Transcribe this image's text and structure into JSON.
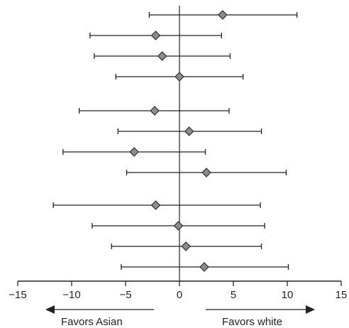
{
  "chart_data": {
    "type": "forest",
    "title": "",
    "xlabel": "",
    "ylabel": "",
    "xlim": [
      -15,
      15
    ],
    "x_ticks": [
      -15,
      -10,
      -5,
      0,
      5,
      10,
      15
    ],
    "x_tick_labels": [
      "−15",
      "−10",
      "−5",
      "0",
      "5",
      "10",
      "15"
    ],
    "reference_line": 0,
    "groups": [
      [
        {
          "estimate": 4.0,
          "lower": -2.8,
          "upper": 10.9
        },
        {
          "estimate": -2.2,
          "lower": -8.3,
          "upper": 3.9
        },
        {
          "estimate": -1.6,
          "lower": -7.9,
          "upper": 4.7
        },
        {
          "estimate": 0.0,
          "lower": -5.9,
          "upper": 5.9
        }
      ],
      [
        {
          "estimate": -2.3,
          "lower": -9.3,
          "upper": 4.6
        },
        {
          "estimate": 0.9,
          "lower": -5.7,
          "upper": 7.6
        },
        {
          "estimate": -4.2,
          "lower": -10.8,
          "upper": 2.4
        },
        {
          "estimate": 2.5,
          "lower": -4.9,
          "upper": 9.9
        }
      ],
      [
        {
          "estimate": -2.2,
          "lower": -11.7,
          "upper": 7.5
        },
        {
          "estimate": -0.1,
          "lower": -8.1,
          "upper": 7.9
        },
        {
          "estimate": 0.6,
          "lower": -6.3,
          "upper": 7.6
        },
        {
          "estimate": 2.3,
          "lower": -5.4,
          "upper": 10.1
        }
      ]
    ],
    "directions": {
      "left": "Favors Asian",
      "right": "Favors white"
    },
    "marker_fill": "#8c8c8c",
    "ink_color": "#222222"
  }
}
